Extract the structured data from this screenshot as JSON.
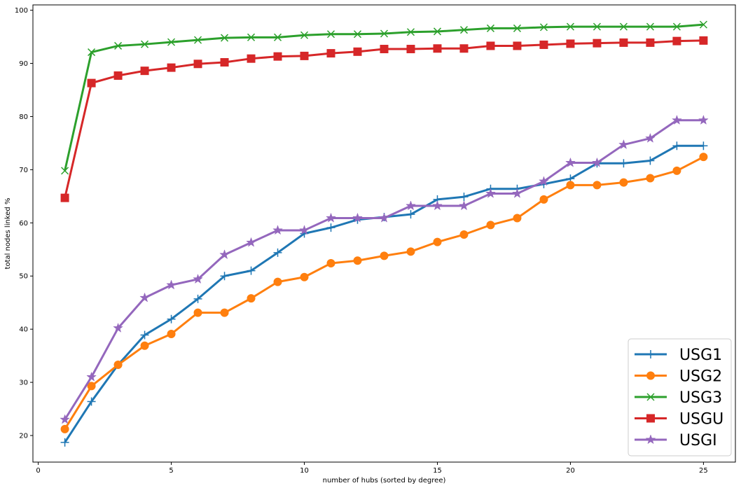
{
  "chart_data": {
    "type": "line",
    "xlabel": "number of hubs (sorted by degree)",
    "ylabel": "total nodes linked %",
    "xlim": [
      -0.2,
      26.2
    ],
    "ylim": [
      15,
      101
    ],
    "xticks": [
      0,
      5,
      10,
      15,
      20,
      25
    ],
    "yticks": [
      20,
      30,
      40,
      50,
      60,
      70,
      80,
      90,
      100
    ],
    "grid": false,
    "legend_position": "lower-right",
    "x": [
      1,
      2,
      3,
      4,
      5,
      6,
      7,
      8,
      9,
      10,
      11,
      12,
      13,
      14,
      15,
      16,
      17,
      18,
      19,
      20,
      21,
      22,
      23,
      24,
      25
    ],
    "series": [
      {
        "name": "USG1",
        "color": "#1f77b4",
        "marker": "plus",
        "values": [
          18.7,
          26.4,
          33.3,
          38.9,
          41.9,
          45.7,
          50.0,
          51.0,
          54.4,
          58.0,
          59.1,
          60.6,
          61.1,
          61.6,
          64.4,
          64.9,
          66.4,
          66.4,
          67.3,
          68.3,
          71.2,
          71.2,
          71.7,
          74.5,
          74.5
        ]
      },
      {
        "name": "USG2",
        "color": "#ff7f0e",
        "marker": "circle",
        "values": [
          21.2,
          29.3,
          33.3,
          36.9,
          39.1,
          43.1,
          43.1,
          45.8,
          48.9,
          49.8,
          52.4,
          52.9,
          53.8,
          54.6,
          56.4,
          57.8,
          59.6,
          60.9,
          64.4,
          67.1,
          67.1,
          67.6,
          68.4,
          69.8,
          72.4
        ]
      },
      {
        "name": "USG3",
        "color": "#2ca02c",
        "marker": "x",
        "values": [
          69.8,
          92.1,
          93.3,
          93.6,
          94.0,
          94.4,
          94.8,
          94.9,
          94.9,
          95.3,
          95.5,
          95.5,
          95.6,
          95.9,
          96.0,
          96.3,
          96.6,
          96.6,
          96.8,
          96.9,
          96.9,
          96.9,
          96.9,
          96.9,
          97.3
        ]
      },
      {
        "name": "USGU",
        "color": "#d62728",
        "marker": "square",
        "values": [
          64.7,
          86.3,
          87.7,
          88.6,
          89.2,
          89.9,
          90.2,
          90.9,
          91.3,
          91.4,
          91.9,
          92.2,
          92.7,
          92.7,
          92.8,
          92.8,
          93.3,
          93.3,
          93.5,
          93.7,
          93.8,
          93.9,
          93.9,
          94.2,
          94.3
        ]
      },
      {
        "name": "USGI",
        "color": "#9467bd",
        "marker": "star",
        "values": [
          23.0,
          31.0,
          40.2,
          45.9,
          48.3,
          49.4,
          54.0,
          56.3,
          58.6,
          58.6,
          60.9,
          60.9,
          60.9,
          63.2,
          63.2,
          63.2,
          65.5,
          65.5,
          67.8,
          71.3,
          71.3,
          74.7,
          75.9,
          79.3,
          79.3
        ]
      }
    ]
  }
}
